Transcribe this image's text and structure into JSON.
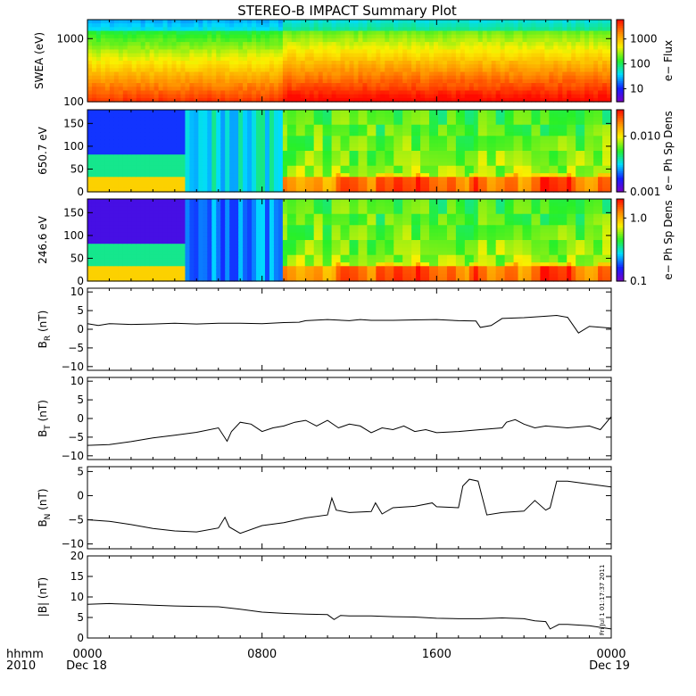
{
  "title": "STEREO-B IMPACT Summary Plot",
  "footer": {
    "time_label": "hhmm",
    "year_label": "2010",
    "x_ticks": [
      "0000",
      "0800",
      "1600",
      "0000"
    ],
    "x_ticks_hours": [
      0,
      8,
      16,
      24
    ],
    "start_date": "Dec 18",
    "end_date": "Dec 19",
    "stamp": "Fri Jul 1 01:17:37 2011"
  },
  "colors": {
    "line": "#000000",
    "frame": "#000000",
    "background": "#ffffff"
  },
  "chart_data": [
    {
      "type": "heatmap",
      "ylabel": "SWEA (eV)",
      "y_scale": "log",
      "y_ticks": [
        "1000",
        "100"
      ],
      "y_tick_values": [
        1000,
        100
      ],
      "ylim": [
        100,
        2000
      ],
      "colorbar_label": "e− Flux",
      "colorbar_scale": "log",
      "colorbar_ticks": [
        "1000",
        "100",
        "10"
      ],
      "colorbar_tick_values": [
        1000,
        100,
        10
      ],
      "colorbar_range": [
        3,
        6000
      ]
    },
    {
      "type": "heatmap",
      "ylabel": "650.7 eV",
      "y_ticks": [
        "150",
        "100",
        "50",
        "0"
      ],
      "y_tick_values": [
        150,
        100,
        50,
        0
      ],
      "ylim": [
        0,
        180
      ],
      "colorbar_label": "e− Ph Sp Dens",
      "colorbar_scale": "log",
      "colorbar_ticks": [
        "0.010",
        "0.001"
      ],
      "colorbar_tick_values": [
        0.01,
        0.001
      ],
      "colorbar_range": [
        0.001,
        0.03
      ]
    },
    {
      "type": "heatmap",
      "ylabel": "246.6 eV",
      "y_ticks": [
        "150",
        "100",
        "50",
        "0"
      ],
      "y_tick_values": [
        150,
        100,
        50,
        0
      ],
      "ylim": [
        0,
        180
      ],
      "colorbar_label": "e− Ph Sp Dens",
      "colorbar_scale": "log",
      "colorbar_ticks": [
        "1.0",
        "0.1"
      ],
      "colorbar_tick_values": [
        1.0,
        0.1
      ],
      "colorbar_range": [
        0.1,
        2.0
      ]
    },
    {
      "type": "line",
      "ylabel": "B",
      "ylabel_sub": "R",
      "ylabel_unit": "(nT)",
      "ylim": [
        -11,
        11
      ],
      "y_ticks": [
        "10",
        "5",
        "0",
        "−5",
        "−10"
      ],
      "y_tick_values": [
        10,
        5,
        0,
        -5,
        -10
      ],
      "x_hours": [
        0,
        0.5,
        1,
        2,
        3,
        4,
        5,
        6,
        7,
        8,
        9,
        9.7,
        10,
        11,
        12,
        12.5,
        13,
        14,
        15,
        16,
        17,
        17.8,
        18,
        18.5,
        19,
        20,
        21,
        21.5,
        22,
        22.5,
        23,
        24
      ],
      "values": [
        1.5,
        1.0,
        1.5,
        1.3,
        1.4,
        1.6,
        1.4,
        1.6,
        1.6,
        1.5,
        1.8,
        1.9,
        2.3,
        2.6,
        2.3,
        2.6,
        2.4,
        2.4,
        2.5,
        2.6,
        2.3,
        2.2,
        0.5,
        1.0,
        2.9,
        3.1,
        3.5,
        3.7,
        3.2,
        -1.0,
        0.8,
        0.3
      ]
    },
    {
      "type": "line",
      "ylabel": "B",
      "ylabel_sub": "T",
      "ylabel_unit": "(nT)",
      "ylim": [
        -11,
        11
      ],
      "y_ticks": [
        "10",
        "5",
        "0",
        "−5",
        "−10"
      ],
      "y_tick_values": [
        10,
        5,
        0,
        -5,
        -10
      ],
      "x_hours": [
        0,
        1,
        2,
        3,
        4,
        5,
        6,
        6.4,
        6.6,
        7,
        7.5,
        8,
        8.5,
        9,
        9.5,
        10,
        10.5,
        11,
        11.5,
        12,
        12.5,
        13,
        13.5,
        14,
        14.5,
        15,
        15.5,
        16,
        17,
        18,
        19,
        19.2,
        19.6,
        20,
        20.5,
        21,
        22,
        23,
        23.5,
        24
      ],
      "values": [
        -7.2,
        -7.0,
        -6.2,
        -5.2,
        -4.5,
        -3.7,
        -2.5,
        -6.1,
        -3.5,
        -1.0,
        -1.5,
        -3.5,
        -2.5,
        -2.0,
        -1.0,
        -0.5,
        -2.0,
        -0.5,
        -2.5,
        -1.5,
        -2.0,
        -3.8,
        -2.5,
        -3.0,
        -2.0,
        -3.5,
        -3.0,
        -3.8,
        -3.5,
        -3.0,
        -2.5,
        -1.0,
        -0.3,
        -1.5,
        -2.5,
        -2.0,
        -2.5,
        -2.0,
        -3.0,
        0.5
      ]
    },
    {
      "type": "line",
      "ylabel": "B",
      "ylabel_sub": "N",
      "ylabel_unit": "(nT)",
      "ylim": [
        -11,
        6
      ],
      "y_ticks": [
        "5",
        "0",
        "−5",
        "−10"
      ],
      "y_tick_values": [
        5,
        0,
        -5,
        -10
      ],
      "x_hours": [
        0,
        1,
        2,
        3,
        4,
        5,
        6,
        6.3,
        6.5,
        7,
        8,
        9,
        10,
        11,
        11.2,
        11.4,
        12,
        13,
        13.2,
        13.5,
        14,
        15,
        15.8,
        16,
        17,
        17.2,
        17.5,
        17.9,
        18.3,
        19,
        20,
        20.5,
        21,
        21.2,
        21.5,
        22,
        23,
        24
      ],
      "values": [
        -5.0,
        -5.3,
        -6.0,
        -6.8,
        -7.3,
        -7.5,
        -6.7,
        -4.5,
        -6.5,
        -7.8,
        -6.2,
        -5.6,
        -4.6,
        -4.0,
        -0.5,
        -3.0,
        -3.5,
        -3.3,
        -1.5,
        -3.8,
        -2.5,
        -2.2,
        -1.5,
        -2.3,
        -2.5,
        2.0,
        3.4,
        3.0,
        -4.0,
        -3.5,
        -3.2,
        -1.0,
        -3.0,
        -2.5,
        3.0,
        3.0,
        2.4,
        1.8
      ]
    },
    {
      "type": "line",
      "ylabel": "|B| (nT)",
      "ylim": [
        0,
        20
      ],
      "y_ticks": [
        "20",
        "15",
        "10",
        "5",
        "0"
      ],
      "y_tick_values": [
        20,
        15,
        10,
        5,
        0
      ],
      "x_hours": [
        0,
        1,
        2,
        3,
        4,
        5,
        6,
        7,
        8,
        9,
        10,
        11,
        11.3,
        11.6,
        12,
        13,
        14,
        15,
        16,
        17,
        18,
        19,
        20,
        20.5,
        21,
        21.2,
        21.6,
        22,
        23,
        24
      ],
      "values": [
        8.2,
        8.4,
        8.2,
        8.0,
        7.8,
        7.7,
        7.6,
        7.0,
        6.3,
        6.0,
        5.8,
        5.7,
        4.5,
        5.5,
        5.4,
        5.4,
        5.2,
        5.1,
        4.8,
        4.7,
        4.7,
        4.9,
        4.7,
        4.2,
        4.0,
        2.2,
        3.3,
        3.3,
        3.0,
        2.2
      ]
    }
  ]
}
